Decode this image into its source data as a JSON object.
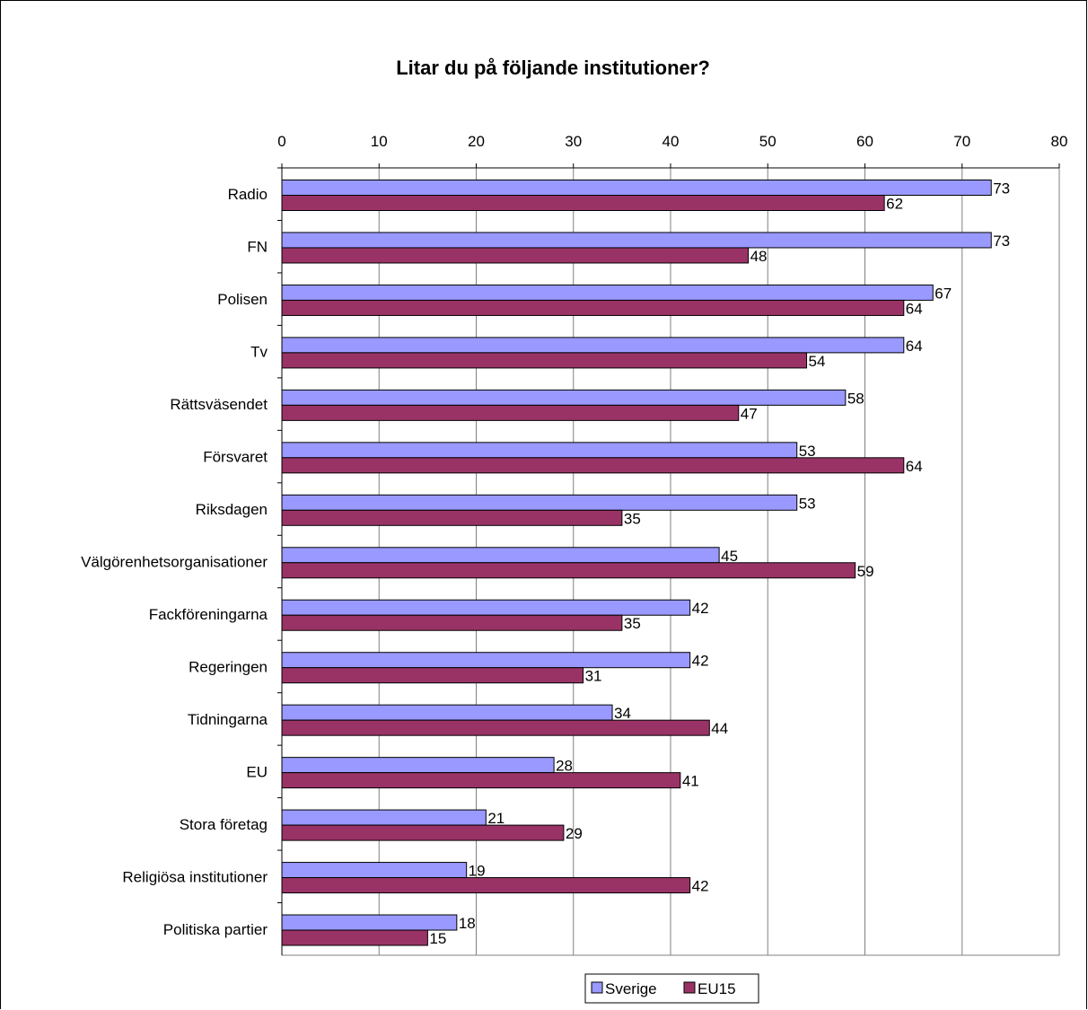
{
  "chart_data": {
    "type": "bar",
    "orientation": "horizontal",
    "title": "Litar du på följande institutioner?",
    "xlabel": "",
    "ylabel": "",
    "xlim": [
      0,
      80
    ],
    "x_ticks": [
      "0",
      "10",
      "20",
      "30",
      "40",
      "50",
      "60",
      "70",
      "80"
    ],
    "x_axis_position": "top",
    "grid": true,
    "legend_position": "bottom",
    "categories": [
      "Radio",
      "FN",
      "Polisen",
      "Tv",
      "Rättsväsendet",
      "Försvaret",
      "Riksdagen",
      "Välgörenhetsorganisationer",
      "Fackföreningarna",
      "Regeringen",
      "Tidningarna",
      "EU",
      "Stora företag",
      "Religiösa institutioner",
      "Politiska partier"
    ],
    "series": [
      {
        "name": "Sverige",
        "color": "#9999ff",
        "values": [
          73,
          73,
          67,
          64,
          58,
          53,
          53,
          45,
          42,
          42,
          34,
          28,
          21,
          19,
          18
        ]
      },
      {
        "name": "EU15",
        "color": "#993366",
        "values": [
          62,
          48,
          64,
          54,
          47,
          64,
          35,
          59,
          35,
          31,
          44,
          41,
          29,
          42,
          15
        ]
      }
    ]
  }
}
